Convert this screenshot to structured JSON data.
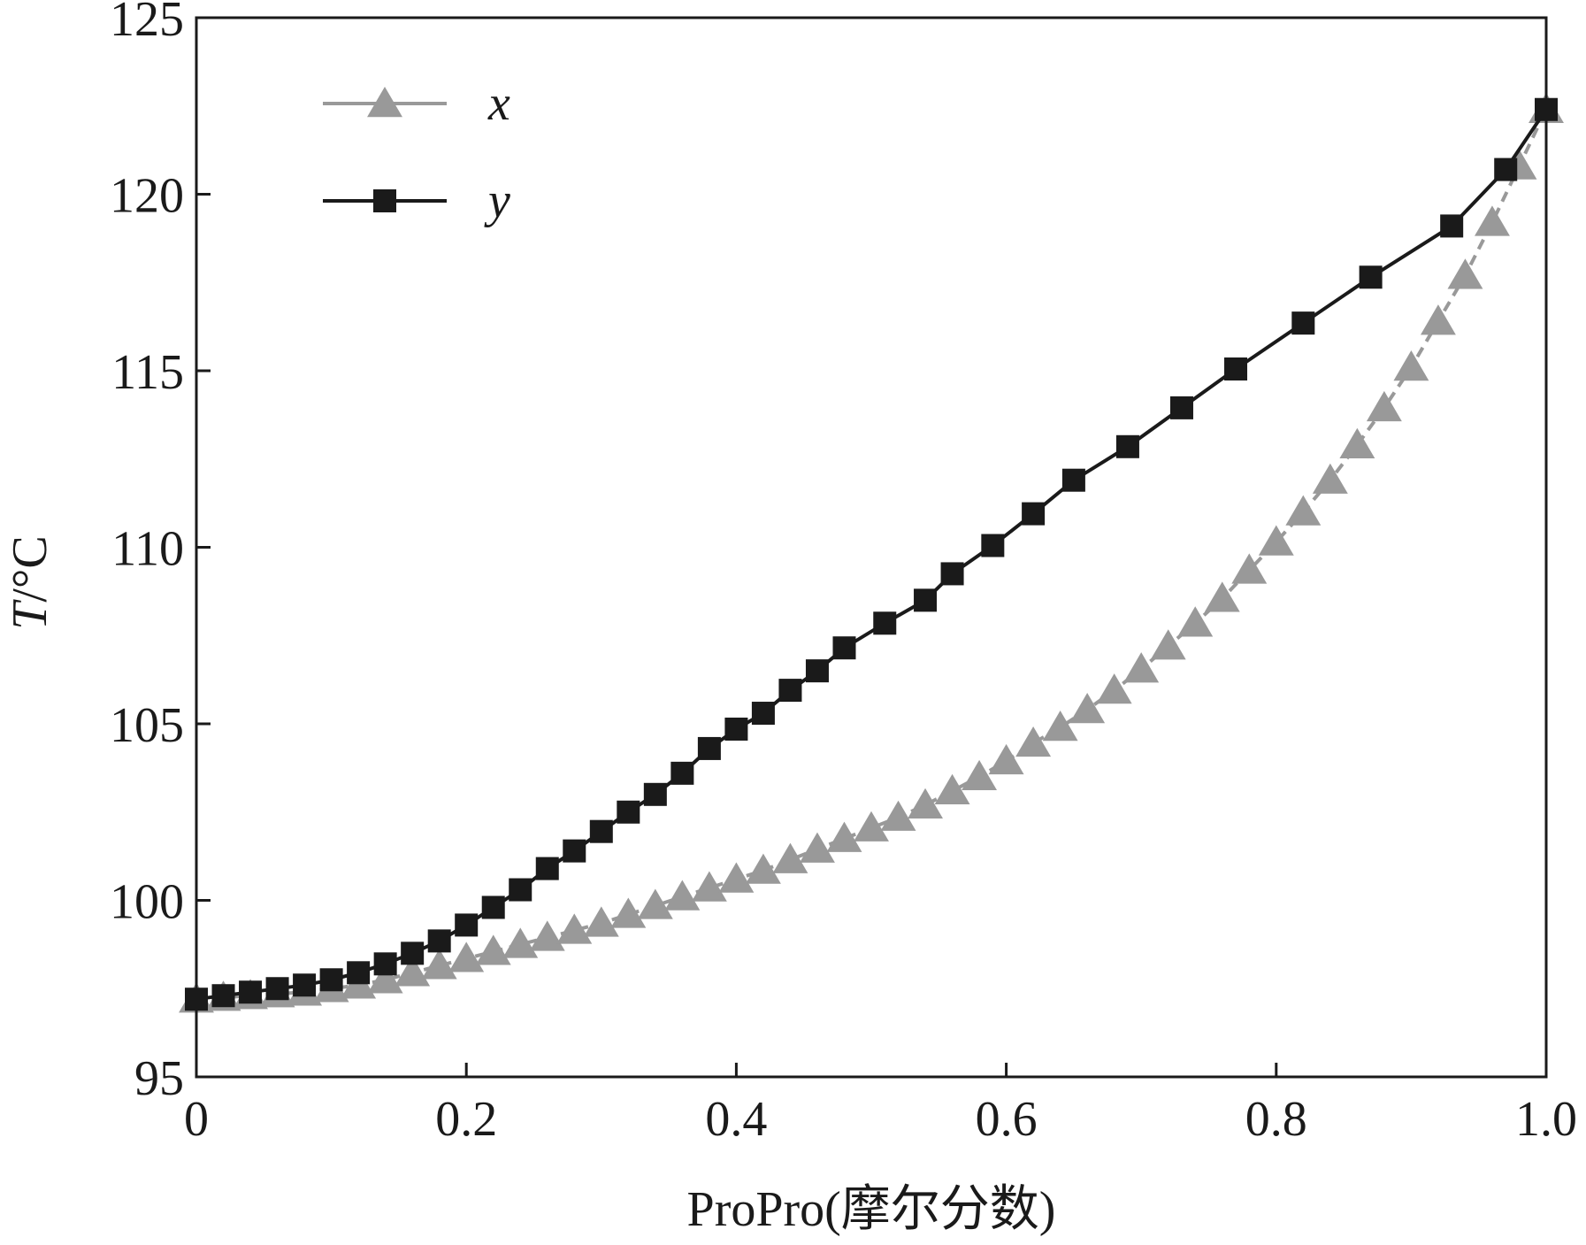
{
  "chart_data": {
    "type": "line",
    "xlabel": "ProPro(摩尔分数)",
    "ylabel_italic": "T",
    "ylabel_unit": "/°C",
    "xlim": [
      0,
      1.0
    ],
    "ylim": [
      95,
      125
    ],
    "x_ticks": [
      {
        "value": 0,
        "label": "0"
      },
      {
        "value": 0.2,
        "label": "0.2"
      },
      {
        "value": 0.4,
        "label": "0.4"
      },
      {
        "value": 0.6,
        "label": "0.6"
      },
      {
        "value": 0.8,
        "label": "0.8"
      },
      {
        "value": 1.0,
        "label": "1.0"
      }
    ],
    "y_ticks": [
      {
        "value": 95,
        "label": "95"
      },
      {
        "value": 100,
        "label": "100"
      },
      {
        "value": 105,
        "label": "105"
      },
      {
        "value": 110,
        "label": "110"
      },
      {
        "value": 115,
        "label": "115"
      },
      {
        "value": 120,
        "label": "120"
      },
      {
        "value": 125,
        "label": "125"
      }
    ],
    "grid": false,
    "legend_position": "top-left",
    "series": [
      {
        "name": "x",
        "color": "#999999",
        "marker": "triangle",
        "line_style": "dashed",
        "points": [
          [
            0.0,
            97.2
          ],
          [
            0.02,
            97.25
          ],
          [
            0.04,
            97.3
          ],
          [
            0.06,
            97.35
          ],
          [
            0.08,
            97.4
          ],
          [
            0.1,
            97.5
          ],
          [
            0.12,
            97.6
          ],
          [
            0.14,
            97.75
          ],
          [
            0.16,
            97.95
          ],
          [
            0.18,
            98.15
          ],
          [
            0.2,
            98.35
          ],
          [
            0.22,
            98.55
          ],
          [
            0.24,
            98.75
          ],
          [
            0.26,
            98.95
          ],
          [
            0.28,
            99.15
          ],
          [
            0.3,
            99.35
          ],
          [
            0.32,
            99.6
          ],
          [
            0.34,
            99.85
          ],
          [
            0.36,
            100.1
          ],
          [
            0.38,
            100.35
          ],
          [
            0.4,
            100.6
          ],
          [
            0.42,
            100.85
          ],
          [
            0.44,
            101.15
          ],
          [
            0.46,
            101.45
          ],
          [
            0.48,
            101.75
          ],
          [
            0.5,
            102.05
          ],
          [
            0.52,
            102.35
          ],
          [
            0.54,
            102.7
          ],
          [
            0.56,
            103.1
          ],
          [
            0.58,
            103.5
          ],
          [
            0.6,
            103.95
          ],
          [
            0.62,
            104.45
          ],
          [
            0.64,
            104.9
          ],
          [
            0.66,
            105.4
          ],
          [
            0.68,
            105.95
          ],
          [
            0.7,
            106.55
          ],
          [
            0.72,
            107.2
          ],
          [
            0.74,
            107.85
          ],
          [
            0.76,
            108.55
          ],
          [
            0.78,
            109.35
          ],
          [
            0.8,
            110.15
          ],
          [
            0.82,
            111.0
          ],
          [
            0.84,
            111.9
          ],
          [
            0.86,
            112.9
          ],
          [
            0.88,
            113.95
          ],
          [
            0.9,
            115.1
          ],
          [
            0.92,
            116.4
          ],
          [
            0.94,
            117.7
          ],
          [
            0.96,
            119.2
          ],
          [
            0.98,
            120.8
          ],
          [
            1.0,
            122.4
          ]
        ]
      },
      {
        "name": "y",
        "color": "#1a1a1a",
        "marker": "square",
        "line_style": "solid",
        "points": [
          [
            0.0,
            97.2
          ],
          [
            0.02,
            97.3
          ],
          [
            0.04,
            97.4
          ],
          [
            0.06,
            97.5
          ],
          [
            0.08,
            97.6
          ],
          [
            0.1,
            97.75
          ],
          [
            0.12,
            97.95
          ],
          [
            0.14,
            98.2
          ],
          [
            0.16,
            98.5
          ],
          [
            0.18,
            98.85
          ],
          [
            0.2,
            99.3
          ],
          [
            0.22,
            99.8
          ],
          [
            0.24,
            100.3
          ],
          [
            0.26,
            100.9
          ],
          [
            0.28,
            101.4
          ],
          [
            0.3,
            101.95
          ],
          [
            0.32,
            102.5
          ],
          [
            0.34,
            103.0
          ],
          [
            0.36,
            103.6
          ],
          [
            0.38,
            104.3
          ],
          [
            0.4,
            104.85
          ],
          [
            0.42,
            105.3
          ],
          [
            0.44,
            105.95
          ],
          [
            0.46,
            106.5
          ],
          [
            0.48,
            107.15
          ],
          [
            0.51,
            107.85
          ],
          [
            0.54,
            108.5
          ],
          [
            0.56,
            109.25
          ],
          [
            0.59,
            110.05
          ],
          [
            0.62,
            110.95
          ],
          [
            0.65,
            111.9
          ],
          [
            0.69,
            112.85
          ],
          [
            0.73,
            113.95
          ],
          [
            0.77,
            115.05
          ],
          [
            0.82,
            116.35
          ],
          [
            0.87,
            117.65
          ],
          [
            0.93,
            119.1
          ],
          [
            0.97,
            120.7
          ],
          [
            1.0,
            122.4
          ]
        ]
      }
    ]
  }
}
